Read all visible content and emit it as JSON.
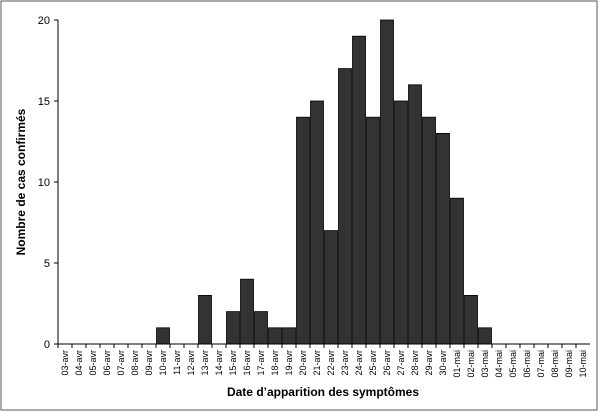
{
  "chart_data": {
    "type": "bar",
    "y_label": "Nombre de cas confirmés",
    "x_label": "Date d’apparition des symptômes",
    "categories": [
      "03-avr",
      "04-avr",
      "05-avr",
      "06-avr",
      "07-avr",
      "08-avr",
      "09-avr",
      "10-avr",
      "11-avr",
      "12-avr",
      "13-avr",
      "14-avr",
      "15-avr",
      "16-avr",
      "17-avr",
      "18-avr",
      "19-avr",
      "20-avr",
      "21-avr",
      "22-avr",
      "23-avr",
      "24-avr",
      "25-avr",
      "26-avr",
      "27-avr",
      "28-avr",
      "29-avr",
      "30-avr",
      "01-mai",
      "02-mai",
      "03-mai",
      "04-mai",
      "05-mai",
      "06-mai",
      "07-mai",
      "08-mai",
      "09-mai",
      "10-mai"
    ],
    "values": [
      0,
      0,
      0,
      0,
      0,
      0,
      0,
      1,
      0,
      0,
      3,
      0,
      2,
      4,
      2,
      1,
      1,
      14,
      15,
      7,
      17,
      19,
      14,
      20,
      15,
      16,
      14,
      13,
      9,
      3,
      1,
      0,
      0,
      0,
      0,
      0,
      0,
      0
    ],
    "color": "#333333",
    "ylim": [
      0,
      20
    ],
    "yticks": [
      0,
      5,
      10,
      15,
      20
    ]
  }
}
